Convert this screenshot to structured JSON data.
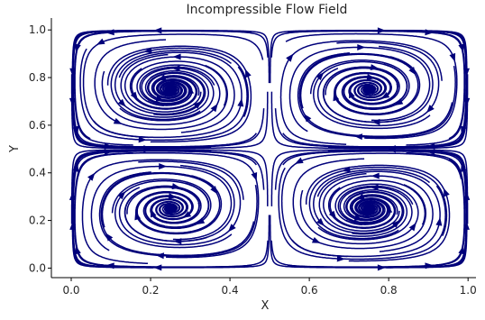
{
  "chart_data": {
    "type": "streamplot",
    "title": "Incompressible Flow Field",
    "xlabel": "X",
    "ylabel": "Y",
    "xlim": [
      -0.05,
      1.02
    ],
    "ylim": [
      -0.04,
      1.05
    ],
    "x_ticks": [
      "0.0",
      "0.2",
      "0.4",
      "0.6",
      "0.8",
      "1.0"
    ],
    "y_ticks": [
      "0.0",
      "0.2",
      "0.4",
      "0.6",
      "0.8",
      "1.0"
    ],
    "x_tick_values": [
      0,
      0.2,
      0.4,
      0.6,
      0.8,
      1.0
    ],
    "y_tick_values": [
      0,
      0.2,
      0.4,
      0.6,
      0.8,
      1.0
    ],
    "grid": false,
    "legend": "none",
    "line_color": "#00007a",
    "field": {
      "description_of_field": "four counter-rotating spiral vortices",
      "vortex_centers": [
        [
          0.25,
          0.75
        ],
        [
          0.75,
          0.75
        ],
        [
          0.25,
          0.25
        ],
        [
          0.75,
          0.25
        ]
      ],
      "cell_boundaries": [
        [
          0.5,
          "vertical"
        ],
        [
          0.5,
          "horizontal"
        ]
      ]
    }
  }
}
